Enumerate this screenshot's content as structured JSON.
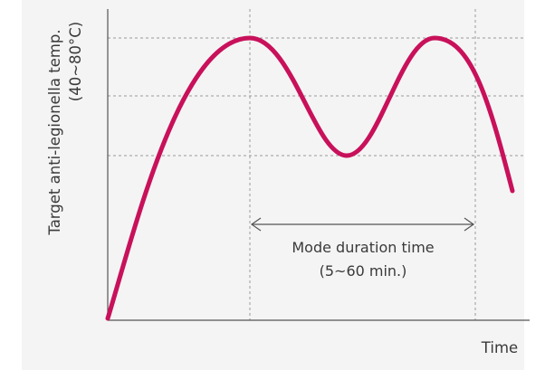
{
  "diagram": {
    "y_axis_label_line1": "Target anti-legionella temp.",
    "y_axis_label_line2": "(40~80°C)",
    "x_axis_label": "Time",
    "duration_label_line1": "Mode duration time",
    "duration_label_line2": "(5~60 min.)"
  },
  "colors": {
    "panel_background": "#f4f4f4",
    "curve": "#c8115a",
    "axis": "#555555",
    "gridline": "#9a9a9a",
    "text": "#3a3a3a"
  }
}
